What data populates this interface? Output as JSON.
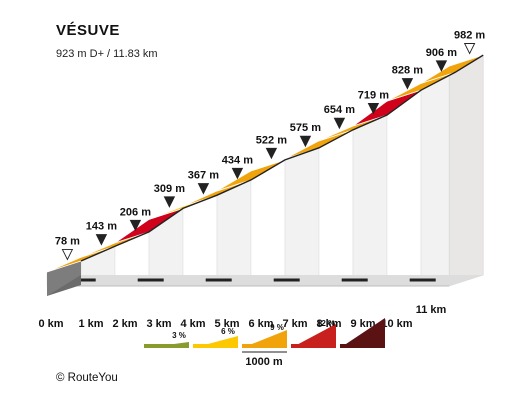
{
  "title": "VÉSUVE",
  "subtitle": "923 m D+ / 11.83 km",
  "credit": "© RouteYou",
  "chart_data": {
    "type": "area",
    "x_unit": "km",
    "elevation_unit": "m",
    "x_ticks": [
      "0 km",
      "1 km",
      "2 km",
      "3 km",
      "4 km",
      "5 km",
      "6 km",
      "7 km",
      "8 km",
      "9 km",
      "10 km",
      "11 km"
    ],
    "distance_km": [
      0,
      1,
      2,
      3,
      4,
      5,
      6,
      7,
      8,
      9,
      10,
      11,
      11.83
    ],
    "elevation_m": [
      78,
      143,
      206,
      309,
      367,
      434,
      522,
      575,
      654,
      719,
      828,
      906,
      982
    ],
    "elevation_labels": [
      "78 m",
      "143 m",
      "206 m",
      "309 m",
      "367 m",
      "434 m",
      "522 m",
      "575 m",
      "654 m",
      "719 m",
      "828 m",
      "906 m",
      "982 m"
    ],
    "segment_colors": [
      "#f0a30a",
      "#f0a30a",
      "#d0021b",
      "#fcc800",
      "#f0a30a",
      "#f0a30a",
      "#fcc800",
      "#f0a30a",
      "#f0a30a",
      "#d0021b",
      "#f0a30a",
      "#f0a30a"
    ],
    "legend": {
      "items": [
        {
          "label": "3 %",
          "color": "#8a9a2e"
        },
        {
          "label": "6 %",
          "color": "#fcc800"
        },
        {
          "label": "9 %",
          "color": "#f0a30a"
        },
        {
          "label": "12 %",
          "color": "#c8201c"
        },
        {
          "label": "",
          "color": "#5a1212"
        }
      ],
      "scale_label": "1000 m"
    }
  }
}
